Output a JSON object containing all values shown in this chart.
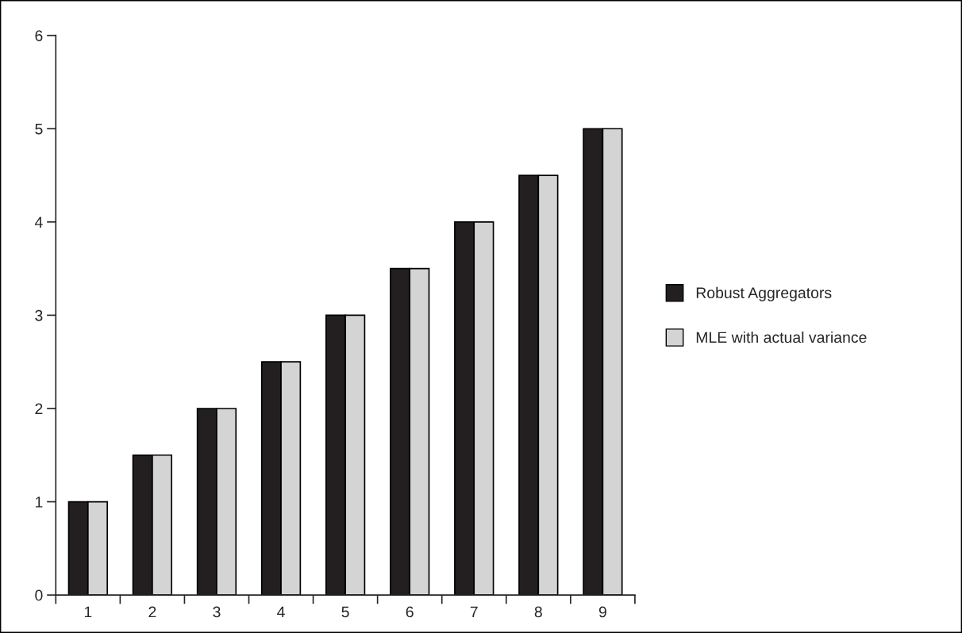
{
  "chart_data": {
    "type": "bar",
    "categories": [
      "1",
      "2",
      "3",
      "4",
      "5",
      "6",
      "7",
      "8",
      "9"
    ],
    "series": [
      {
        "name": "Robust Aggregators",
        "color": "#231f20",
        "values": [
          1,
          1.5,
          2,
          2.5,
          3,
          3.5,
          4,
          4.5,
          5
        ]
      },
      {
        "name": "MLE with actual variance",
        "color": "#d4d4d4",
        "values": [
          1,
          1.5,
          2,
          2.5,
          3,
          3.5,
          4,
          4.5,
          5
        ]
      }
    ],
    "ylim": [
      0,
      6
    ],
    "yticks": [
      0,
      1,
      2,
      3,
      4,
      5,
      6
    ],
    "grid": false,
    "legend": "right"
  }
}
